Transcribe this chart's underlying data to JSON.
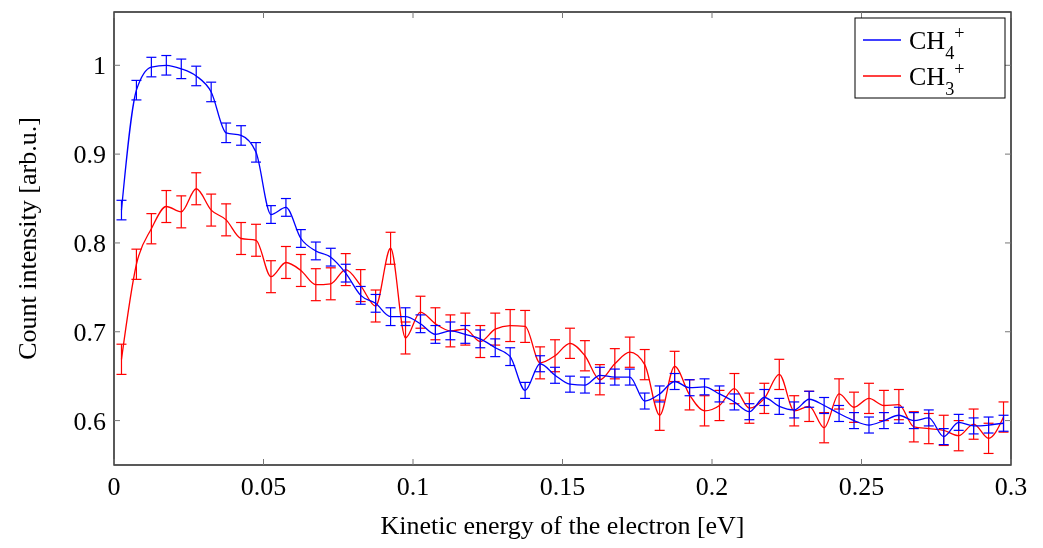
{
  "chart_data": {
    "type": "line",
    "xlabel": "Kinetic energy of the electron [eV]",
    "ylabel": "Count intensity [arb.u.]",
    "x": [
      0.0025,
      0.0075,
      0.0125,
      0.0175,
      0.0225,
      0.0275,
      0.0325,
      0.0375,
      0.0425,
      0.0475,
      0.0525,
      0.0575,
      0.0625,
      0.0675,
      0.0725,
      0.0775,
      0.0825,
      0.0875,
      0.0925,
      0.0975,
      0.1025,
      0.1075,
      0.1125,
      0.1175,
      0.1225,
      0.1275,
      0.1325,
      0.1375,
      0.1425,
      0.1475,
      0.1525,
      0.1575,
      0.1625,
      0.1675,
      0.1725,
      0.1775,
      0.1825,
      0.1875,
      0.1925,
      0.1975,
      0.2025,
      0.2075,
      0.2125,
      0.2175,
      0.2225,
      0.2275,
      0.2325,
      0.2375,
      0.2425,
      0.2475,
      0.2525,
      0.2575,
      0.2625,
      0.2675,
      0.2725,
      0.2775,
      0.2825,
      0.2875,
      0.2925,
      0.2975
    ],
    "series": [
      {
        "name": "CH$_{4}$$^{+}$",
        "color": "#0000ff",
        "values": [
          0.837,
          0.972,
          0.998,
          1.0,
          0.996,
          0.988,
          0.97,
          0.924,
          0.921,
          0.902,
          0.832,
          0.84,
          0.805,
          0.791,
          0.784,
          0.766,
          0.741,
          0.732,
          0.717,
          0.717,
          0.709,
          0.697,
          0.701,
          0.697,
          0.692,
          0.682,
          0.672,
          0.634,
          0.664,
          0.651,
          0.641,
          0.64,
          0.651,
          0.649,
          0.649,
          0.622,
          0.63,
          0.644,
          0.637,
          0.638,
          0.63,
          0.621,
          0.61,
          0.626,
          0.616,
          0.612,
          0.624,
          0.617,
          0.608,
          0.6,
          0.595,
          0.6,
          0.606,
          0.6,
          0.603,
          0.582,
          0.598,
          0.594,
          0.595,
          0.597
        ],
        "errors": [
          0.011,
          0.011,
          0.011,
          0.011,
          0.011,
          0.011,
          0.011,
          0.011,
          0.011,
          0.011,
          0.01,
          0.01,
          0.01,
          0.01,
          0.01,
          0.01,
          0.01,
          0.01,
          0.01,
          0.01,
          0.01,
          0.01,
          0.01,
          0.01,
          0.01,
          0.01,
          0.01,
          0.009,
          0.009,
          0.009,
          0.009,
          0.009,
          0.009,
          0.009,
          0.009,
          0.009,
          0.009,
          0.009,
          0.009,
          0.009,
          0.009,
          0.009,
          0.009,
          0.009,
          0.009,
          0.009,
          0.009,
          0.009,
          0.009,
          0.009,
          0.009,
          0.009,
          0.009,
          0.009,
          0.009,
          0.009,
          0.009,
          0.009,
          0.009,
          0.009
        ]
      },
      {
        "name": "CH$_{3}$$^{+}$",
        "color": "#ff0000",
        "values": [
          0.669,
          0.776,
          0.816,
          0.841,
          0.835,
          0.861,
          0.837,
          0.826,
          0.805,
          0.803,
          0.762,
          0.778,
          0.769,
          0.753,
          0.754,
          0.77,
          0.752,
          0.729,
          0.794,
          0.693,
          0.722,
          0.709,
          0.701,
          0.703,
          0.689,
          0.703,
          0.707,
          0.706,
          0.665,
          0.673,
          0.687,
          0.673,
          0.646,
          0.664,
          0.677,
          0.663,
          0.606,
          0.661,
          0.629,
          0.611,
          0.617,
          0.636,
          0.614,
          0.625,
          0.652,
          0.611,
          0.616,
          0.592,
          0.63,
          0.615,
          0.625,
          0.617,
          0.618,
          0.593,
          0.591,
          0.589,
          0.583,
          0.596,
          0.58,
          0.604
        ],
        "errors": [
          0.017,
          0.017,
          0.017,
          0.018,
          0.018,
          0.018,
          0.018,
          0.018,
          0.018,
          0.018,
          0.018,
          0.018,
          0.018,
          0.018,
          0.018,
          0.018,
          0.018,
          0.018,
          0.018,
          0.018,
          0.018,
          0.018,
          0.018,
          0.018,
          0.018,
          0.018,
          0.018,
          0.018,
          0.018,
          0.018,
          0.017,
          0.017,
          0.017,
          0.017,
          0.017,
          0.017,
          0.017,
          0.017,
          0.017,
          0.017,
          0.017,
          0.017,
          0.017,
          0.017,
          0.017,
          0.017,
          0.017,
          0.017,
          0.017,
          0.017,
          0.017,
          0.017,
          0.017,
          0.017,
          0.017,
          0.017,
          0.017,
          0.017,
          0.017,
          0.017
        ]
      }
    ],
    "xlim": [
      0,
      0.3
    ],
    "xticks": [
      0,
      0.05,
      0.1,
      0.15,
      0.2,
      0.25,
      0.3
    ],
    "ylim": [
      0.55,
      1.06
    ],
    "yticks": [
      0.6,
      0.7,
      0.8,
      0.9,
      1
    ],
    "legend": "top right",
    "grid": false,
    "marker": "none",
    "line_style": "solid"
  }
}
